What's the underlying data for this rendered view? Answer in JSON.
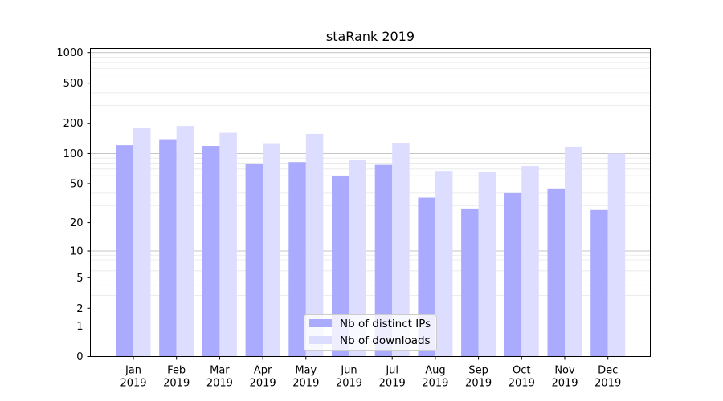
{
  "chart_data": {
    "type": "bar",
    "title": "staRank 2019",
    "xlabel": "",
    "ylabel": "",
    "yscale": "log(y+1)",
    "ylim": [
      0,
      1100
    ],
    "yticks": [
      0,
      1,
      2,
      5,
      10,
      20,
      50,
      100,
      200,
      500,
      1000
    ],
    "grid": true,
    "legend_position": "bottom-center",
    "categories": [
      [
        "Jan",
        "2019"
      ],
      [
        "Feb",
        "2019"
      ],
      [
        "Mar",
        "2019"
      ],
      [
        "Apr",
        "2019"
      ],
      [
        "May",
        "2019"
      ],
      [
        "Jun",
        "2019"
      ],
      [
        "Jul",
        "2019"
      ],
      [
        "Aug",
        "2019"
      ],
      [
        "Sep",
        "2019"
      ],
      [
        "Oct",
        "2019"
      ],
      [
        "Nov",
        "2019"
      ],
      [
        "Dec",
        "2019"
      ]
    ],
    "series": [
      {
        "name": "Nb of distinct IPs",
        "color": "#aaaaff",
        "values": [
          121,
          139,
          119,
          79,
          82,
          59,
          77,
          36,
          28,
          40,
          44,
          27
        ]
      },
      {
        "name": "Nb of downloads",
        "color": "#ddddff",
        "values": [
          180,
          188,
          161,
          127,
          157,
          86,
          128,
          67,
          65,
          75,
          117,
          100
        ]
      }
    ]
  }
}
